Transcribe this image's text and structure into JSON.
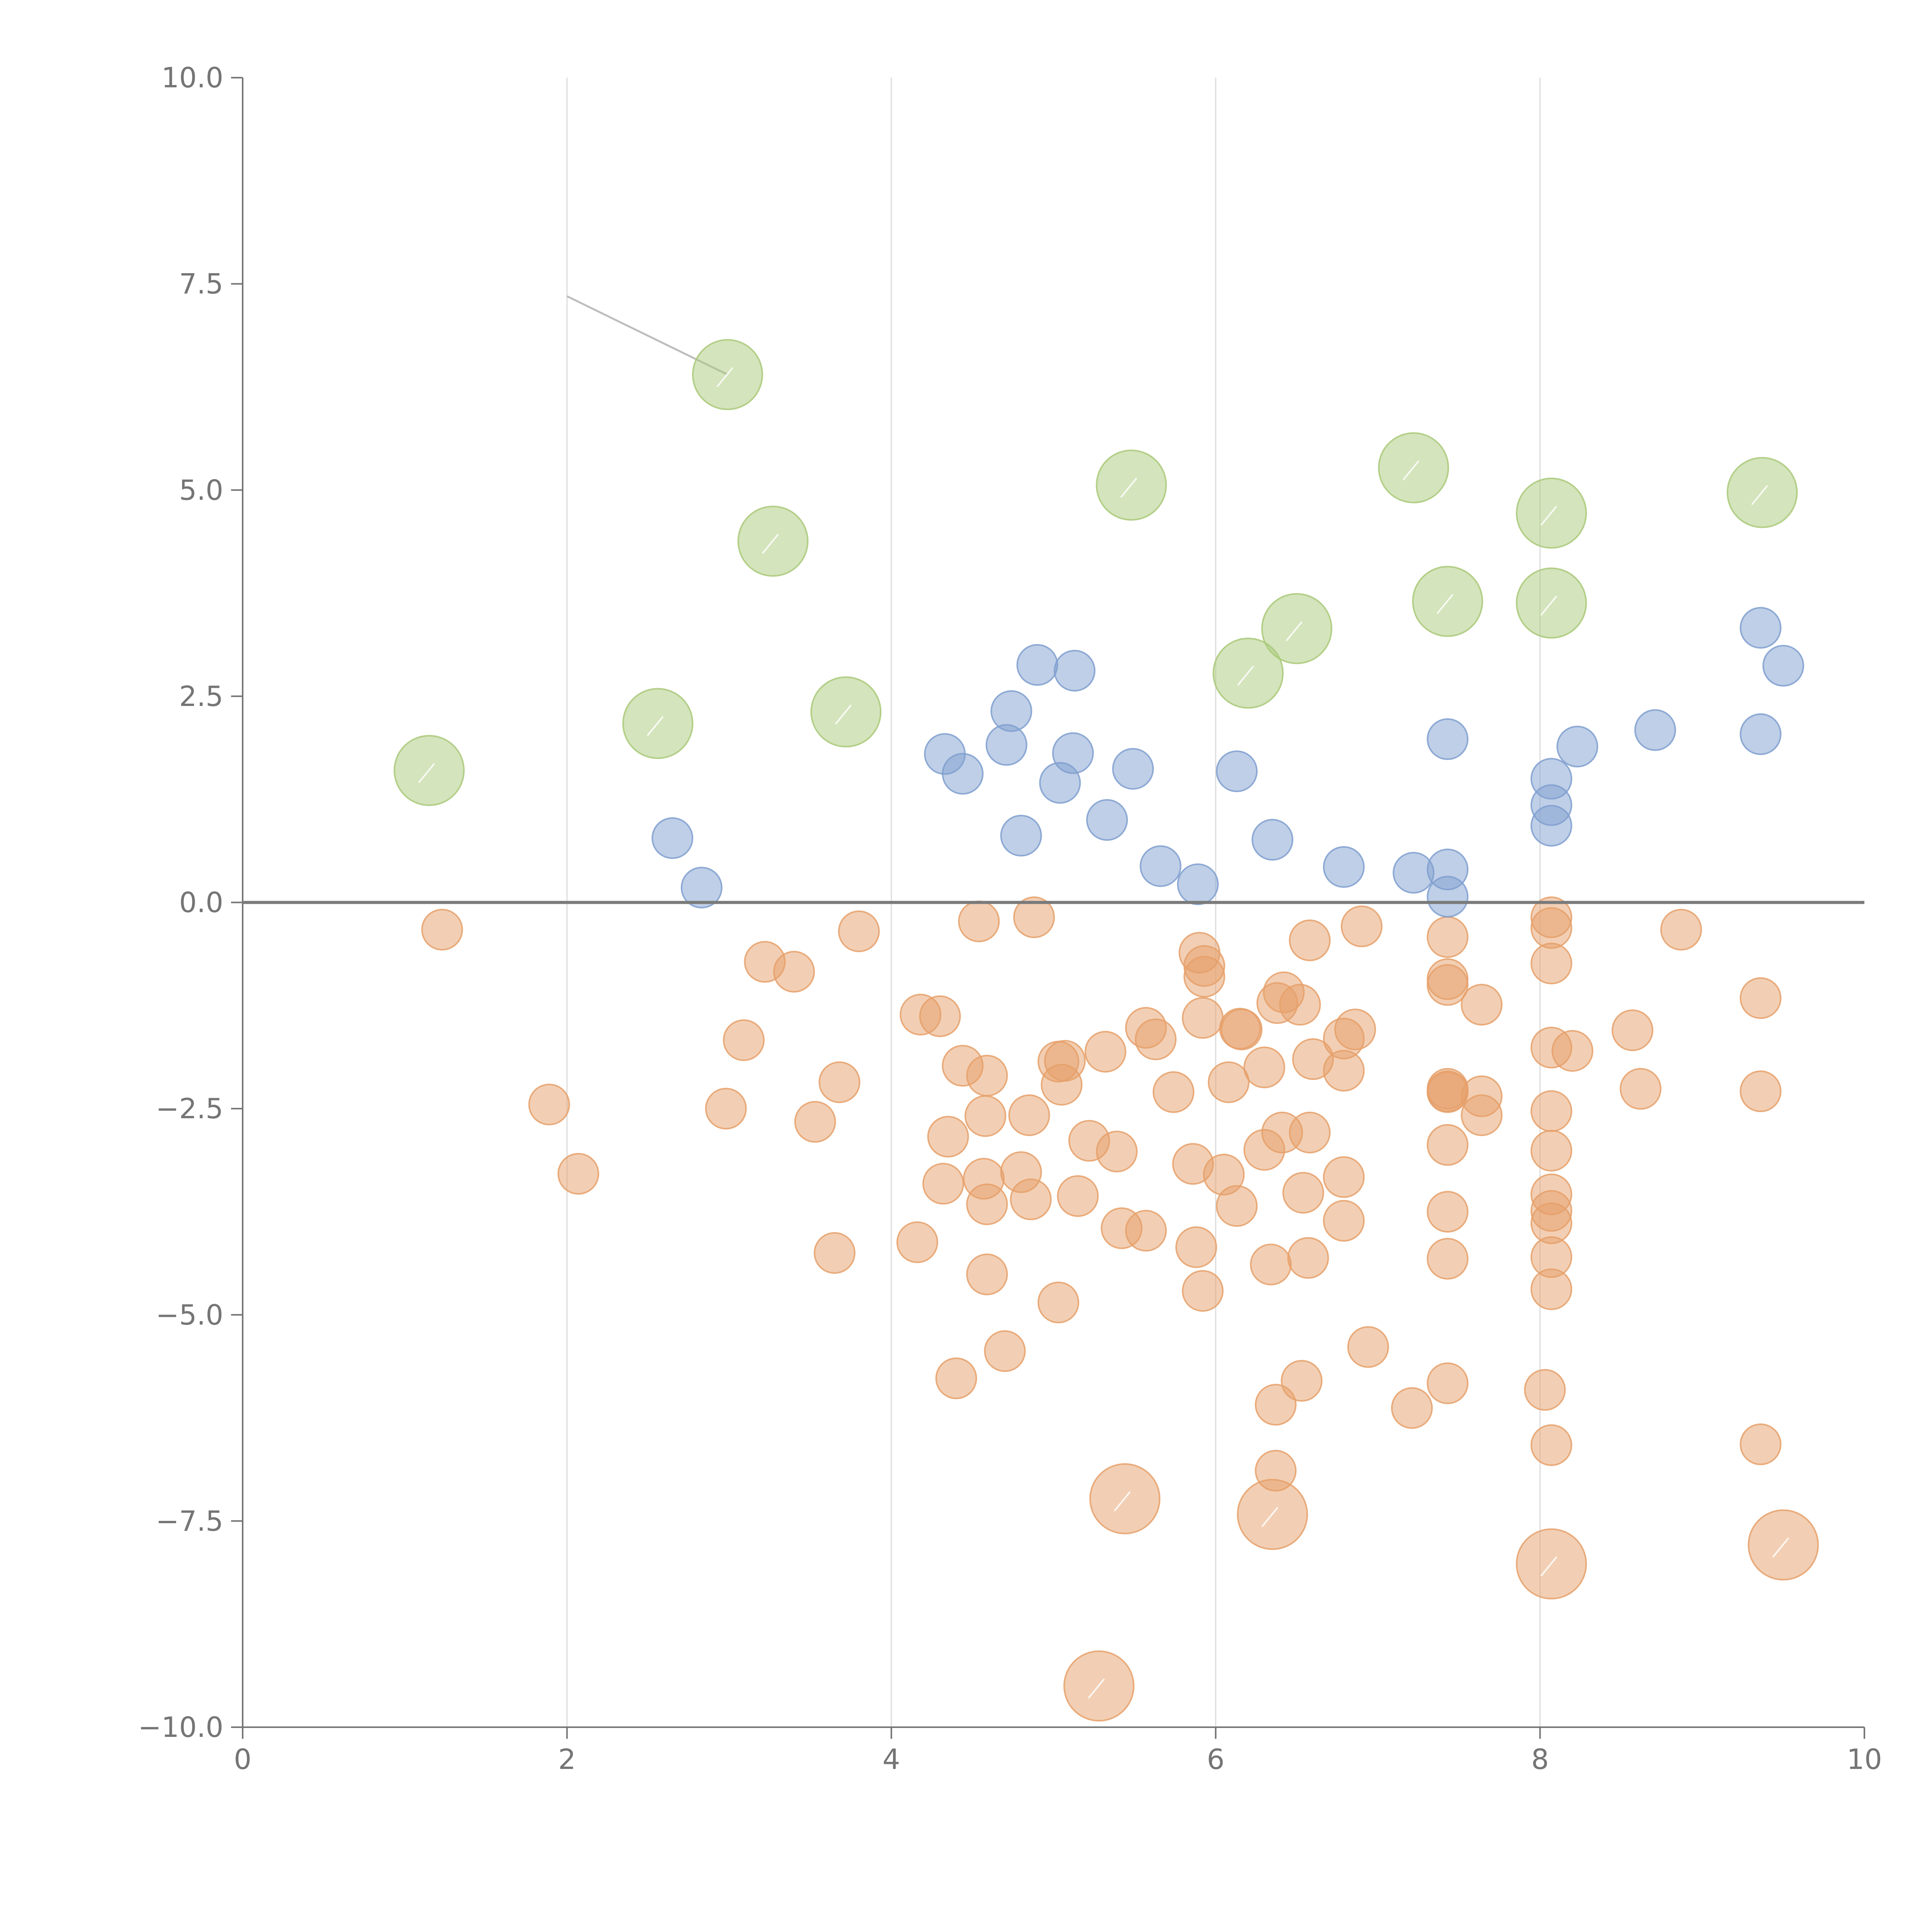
{
  "chart_data": {
    "type": "scatter",
    "title": "",
    "xlabel": "",
    "ylabel": "",
    "xlim": [
      0,
      10
    ],
    "ylim": [
      -10,
      10
    ],
    "x_ticks": [
      "0",
      "2",
      "4",
      "6",
      "8",
      "10"
    ],
    "y_ticks": [
      "10.0",
      "7.5",
      "5.0",
      "2.5",
      "0.0",
      "−2.5",
      "−5.0",
      "−7.5",
      "−10.0"
    ],
    "x_grid": true,
    "y_grid": false,
    "reference_line_y": 0,
    "colors": {
      "green": "#a9c979",
      "blue": "#7f9fcf",
      "orange": "#e6a06a",
      "axis": "#757575",
      "grid": "#dcdcdc"
    },
    "series": [
      {
        "color": "green",
        "size": "large",
        "points": [
          [
            1.15,
            1.6
          ],
          [
            2.56,
            2.17
          ],
          [
            2.99,
            6.4
          ],
          [
            3.27,
            4.38
          ],
          [
            3.72,
            2.31
          ],
          [
            5.48,
            5.06
          ],
          [
            6.2,
            2.78
          ],
          [
            6.5,
            3.32
          ],
          [
            7.22,
            5.27
          ],
          [
            7.43,
            3.65
          ],
          [
            8.07,
            4.72
          ],
          [
            8.07,
            3.63
          ],
          [
            9.37,
            4.97
          ]
        ]
      },
      {
        "color": "blue",
        "size": "small",
        "points": [
          [
            2.65,
            0.78
          ],
          [
            2.83,
            0.18
          ],
          [
            4.33,
            1.8
          ],
          [
            4.44,
            1.56
          ],
          [
            4.71,
            1.91
          ],
          [
            4.74,
            2.32
          ],
          [
            4.8,
            0.81
          ],
          [
            4.9,
            2.88
          ],
          [
            5.04,
            1.45
          ],
          [
            5.12,
            1.81
          ],
          [
            5.13,
            2.81
          ],
          [
            5.33,
            1.0
          ],
          [
            5.49,
            1.62
          ],
          [
            5.66,
            0.44
          ],
          [
            5.89,
            0.22
          ],
          [
            6.13,
            1.59
          ],
          [
            6.35,
            0.76
          ],
          [
            6.79,
            0.43
          ],
          [
            7.22,
            0.36
          ],
          [
            7.43,
            1.98
          ],
          [
            7.43,
            0.4
          ],
          [
            7.43,
            0.07
          ],
          [
            8.07,
            1.5
          ],
          [
            8.07,
            1.18
          ],
          [
            8.07,
            0.93
          ],
          [
            8.23,
            1.89
          ],
          [
            8.71,
            2.09
          ],
          [
            9.36,
            3.33
          ],
          [
            9.36,
            2.04
          ],
          [
            9.5,
            2.87
          ]
        ]
      },
      {
        "color": "orange",
        "size": "small",
        "points": [
          [
            1.23,
            -0.33
          ],
          [
            1.89,
            -2.45
          ],
          [
            2.07,
            -3.29
          ],
          [
            2.98,
            -2.5
          ],
          [
            3.09,
            -1.67
          ],
          [
            3.22,
            -0.72
          ],
          [
            3.4,
            -0.84
          ],
          [
            3.53,
            -2.66
          ],
          [
            3.65,
            -4.25
          ],
          [
            3.68,
            -2.18
          ],
          [
            3.8,
            -0.35
          ],
          [
            4.16,
            -4.12
          ],
          [
            4.18,
            -1.36
          ],
          [
            4.3,
            -1.38
          ],
          [
            4.32,
            -3.41
          ],
          [
            4.35,
            -2.84
          ],
          [
            4.4,
            -5.77
          ],
          [
            4.44,
            -1.98
          ],
          [
            4.54,
            -0.23
          ],
          [
            4.57,
            -3.35
          ],
          [
            4.58,
            -2.59
          ],
          [
            4.59,
            -3.66
          ],
          [
            4.59,
            -2.1
          ],
          [
            4.59,
            -4.51
          ],
          [
            4.7,
            -5.44
          ],
          [
            4.8,
            -3.27
          ],
          [
            4.85,
            -2.58
          ],
          [
            4.86,
            -3.6
          ],
          [
            4.88,
            -0.18
          ],
          [
            5.03,
            -4.85
          ],
          [
            5.03,
            -1.93
          ],
          [
            5.05,
            -2.21
          ],
          [
            5.07,
            -1.92
          ],
          [
            5.15,
            -3.56
          ],
          [
            5.22,
            -2.89
          ],
          [
            5.32,
            -1.81
          ],
          [
            5.39,
            -3.02
          ],
          [
            5.42,
            -3.95
          ],
          [
            5.57,
            -1.52
          ],
          [
            5.57,
            -3.98
          ],
          [
            5.63,
            -1.66
          ],
          [
            5.74,
            -2.3
          ],
          [
            5.86,
            -3.17
          ],
          [
            5.88,
            -4.18
          ],
          [
            5.9,
            -0.61
          ],
          [
            5.92,
            -1.4
          ],
          [
            5.92,
            -4.71
          ],
          [
            5.93,
            -0.77
          ],
          [
            5.93,
            -0.9
          ],
          [
            6.05,
            -3.3
          ],
          [
            6.08,
            -2.18
          ],
          [
            6.13,
            -3.68
          ],
          [
            6.15,
            -1.53
          ],
          [
            6.16,
            -1.54
          ],
          [
            6.3,
            -2.0
          ],
          [
            6.3,
            -3.0
          ],
          [
            6.34,
            -4.39
          ],
          [
            6.37,
            -6.09
          ],
          [
            6.37,
            -6.89
          ],
          [
            6.38,
            -1.22
          ],
          [
            6.41,
            -2.79
          ],
          [
            6.42,
            -1.09
          ],
          [
            6.52,
            -1.24
          ],
          [
            6.53,
            -5.8
          ],
          [
            6.54,
            -3.52
          ],
          [
            6.57,
            -4.31
          ],
          [
            6.58,
            -0.46
          ],
          [
            6.58,
            -2.79
          ],
          [
            6.6,
            -1.9
          ],
          [
            6.79,
            -1.65
          ],
          [
            6.79,
            -2.04
          ],
          [
            6.79,
            -3.33
          ],
          [
            6.79,
            -3.86
          ],
          [
            6.86,
            -1.54
          ],
          [
            6.9,
            -0.29
          ],
          [
            6.94,
            -5.39
          ],
          [
            7.21,
            -6.13
          ],
          [
            7.43,
            -0.42
          ],
          [
            7.43,
            -0.93
          ],
          [
            7.43,
            -1.0
          ],
          [
            7.43,
            -2.26
          ],
          [
            7.43,
            -2.29
          ],
          [
            7.43,
            -2.94
          ],
          [
            7.43,
            -3.75
          ],
          [
            7.43,
            -4.32
          ],
          [
            7.43,
            -5.83
          ],
          [
            7.43,
            -2.3
          ],
          [
            7.64,
            -1.24
          ],
          [
            7.64,
            -2.35
          ],
          [
            7.64,
            -2.58
          ],
          [
            8.03,
            -5.91
          ],
          [
            8.07,
            -0.18
          ],
          [
            8.07,
            -0.31
          ],
          [
            8.07,
            -0.74
          ],
          [
            8.07,
            -1.76
          ],
          [
            8.07,
            -2.53
          ],
          [
            8.07,
            -3.01
          ],
          [
            8.07,
            -3.54
          ],
          [
            8.07,
            -3.74
          ],
          [
            8.07,
            -3.89
          ],
          [
            8.07,
            -4.3
          ],
          [
            8.07,
            -4.69
          ],
          [
            8.07,
            -6.58
          ],
          [
            8.2,
            -1.8
          ],
          [
            8.57,
            -1.55
          ],
          [
            8.62,
            -2.26
          ],
          [
            8.87,
            -0.33
          ],
          [
            9.36,
            -1.16
          ],
          [
            9.36,
            -2.29
          ],
          [
            9.36,
            -6.57
          ]
        ]
      },
      {
        "color": "orange",
        "size": "large",
        "points": [
          [
            5.28,
            -9.5
          ],
          [
            5.44,
            -7.23
          ],
          [
            6.35,
            -7.42
          ],
          [
            8.07,
            -8.02
          ],
          [
            9.5,
            -7.79
          ]
        ]
      }
    ],
    "annotations": [
      {
        "text": "",
        "from": [
          2.0,
          7.35
        ],
        "to": [
          2.99,
          6.4
        ]
      }
    ]
  }
}
